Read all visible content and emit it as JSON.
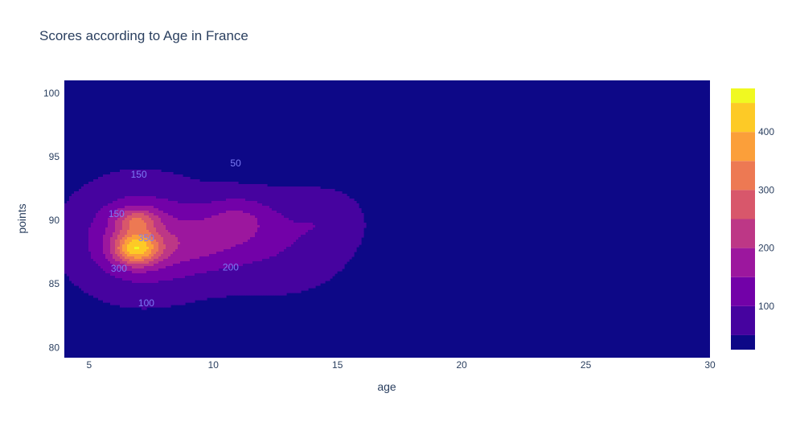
{
  "chart_data": {
    "type": "contour",
    "title": "Scores according to Age in France",
    "xlabel": "age",
    "ylabel": "points",
    "xlim": [
      4,
      30
    ],
    "ylim": [
      79.2,
      101
    ],
    "x_ticks": [
      5,
      10,
      15,
      20,
      25,
      30
    ],
    "y_ticks": [
      80,
      85,
      90,
      95,
      100
    ],
    "colorscale": [
      "#0d0887",
      "#46039f",
      "#7201a8",
      "#9c179e",
      "#bd3786",
      "#d8576b",
      "#ed7953",
      "#fb9f3a",
      "#fdca26",
      "#f0f921"
    ],
    "contour_levels": [
      50,
      100,
      150,
      200,
      250,
      300,
      350,
      400,
      450
    ],
    "z_range": [
      25,
      475
    ],
    "colorbar_ticks": [
      100,
      200,
      300,
      400
    ],
    "contour_labels": [
      {
        "text": "50",
        "x": 10.9,
        "y": 94.5
      },
      {
        "text": "150",
        "x": 7.0,
        "y": 93.6
      },
      {
        "text": "150",
        "x": 6.1,
        "y": 90.5
      },
      {
        "text": "350",
        "x": 7.3,
        "y": 88.6
      },
      {
        "text": "300",
        "x": 6.2,
        "y": 86.2
      },
      {
        "text": "200",
        "x": 10.7,
        "y": 86.3
      },
      {
        "text": "100",
        "x": 7.3,
        "y": 83.5
      }
    ],
    "peaks": [
      {
        "x": 6.9,
        "y": 87.8,
        "z": 470
      },
      {
        "x": 6.9,
        "y": 90.0,
        "z": 400
      },
      {
        "x": 9.0,
        "y": 88.0,
        "z": 260
      },
      {
        "x": 11.0,
        "y": 90.2,
        "z": 250
      }
    ]
  }
}
